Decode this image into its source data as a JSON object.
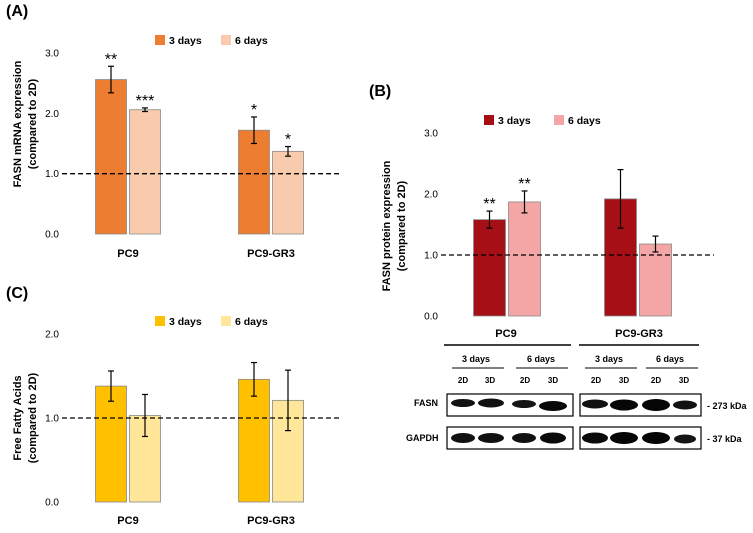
{
  "chart_data": [
    {
      "panel": "(A)",
      "type": "bar",
      "categories": [
        "PC9",
        "PC9-GR3"
      ],
      "series": [
        {
          "name": "3 days",
          "color": "#ed7d31",
          "values": [
            2.56,
            1.72
          ],
          "errors": [
            0.22,
            0.22
          ],
          "stars": [
            "**",
            "*"
          ]
        },
        {
          "name": "6 days",
          "color": "#f8cbad",
          "values": [
            2.06,
            1.37
          ],
          "errors": [
            0.03,
            0.08
          ],
          "stars": [
            "***",
            "*"
          ]
        }
      ],
      "ylabel_line1": "FASN mRNA expression",
      "ylabel_line2": "(compared to 2D)",
      "ylim": [
        0,
        3
      ],
      "yticks": [
        "0.0",
        "1.0",
        "2.0",
        "3.0"
      ],
      "reference_line": 1.0
    },
    {
      "panel": "(B)",
      "type": "bar",
      "categories": [
        "PC9",
        "PC9-GR3"
      ],
      "series": [
        {
          "name": "3 days",
          "color": "#a50f15",
          "values": [
            1.58,
            1.92
          ],
          "errors": [
            0.14,
            0.48
          ],
          "stars": [
            "**",
            ""
          ]
        },
        {
          "name": "6 days",
          "color": "#f4a6a6",
          "values": [
            1.87,
            1.18
          ],
          "errors": [
            0.18,
            0.13
          ],
          "stars": [
            "**",
            ""
          ]
        }
      ],
      "ylabel_line1": "FASN protein expression",
      "ylabel_line2": "(compared to 2D)",
      "ylim": [
        0,
        3
      ],
      "yticks": [
        "0.0",
        "1.0",
        "2.0",
        "3.0"
      ],
      "reference_line": 1.0
    },
    {
      "panel": "(C)",
      "type": "bar",
      "categories": [
        "PC9",
        "PC9-GR3"
      ],
      "series": [
        {
          "name": "3 days",
          "color": "#ffc000",
          "values": [
            1.38,
            1.46
          ],
          "errors": [
            0.18,
            0.2
          ],
          "stars": [
            "",
            ""
          ]
        },
        {
          "name": "6 days",
          "color": "#ffe699",
          "values": [
            1.03,
            1.21
          ],
          "errors": [
            0.25,
            0.36
          ],
          "stars": [
            "",
            ""
          ]
        }
      ],
      "ylabel_line1": "Free Fatty Acids",
      "ylabel_line2": "(compared to 2D)",
      "ylim": [
        0,
        2
      ],
      "yticks": [
        "0.0",
        "1.0",
        "2.0"
      ],
      "reference_line": 1.0
    }
  ],
  "blot": {
    "groups": [
      "PC9",
      "PC9-GR3"
    ],
    "timepoints": [
      "3 days",
      "6 days",
      "3 days",
      "6 days"
    ],
    "conditions": [
      "2D",
      "3D",
      "2D",
      "3D",
      "2D",
      "3D",
      "2D",
      "3D"
    ],
    "rows": [
      {
        "label": "FASN",
        "size": "- 273 kDa"
      },
      {
        "label": "GAPDH",
        "size": "- 37 kDa"
      }
    ]
  }
}
